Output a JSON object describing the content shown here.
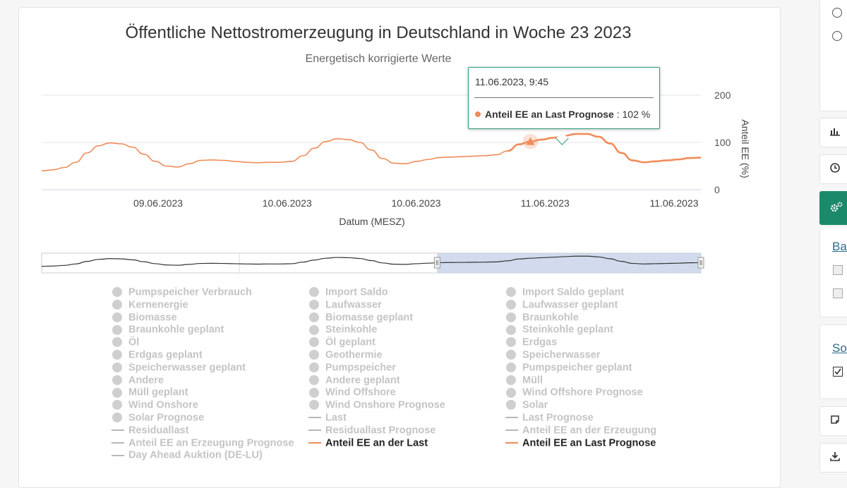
{
  "chart_data": {
    "type": "line",
    "title": "Öffentliche Nettostromerzeugung in Deutschland in Woche 23 2023",
    "subtitle": "Energetisch korrigierte Werte",
    "xlabel": "Datum (MESZ)",
    "ylabel": "Anteil EE (%)",
    "ylim": [
      0,
      200
    ],
    "yticks": [
      0,
      100,
      200
    ],
    "xticks": [
      "09.06.2023",
      "10.06.2023",
      "10.06.2023",
      "11.06.2023",
      "11.06.2023"
    ],
    "grid": true,
    "color": "#f08c5a",
    "series": [
      {
        "name": "Anteil EE an der Last",
        "points": [
          [
            0,
            40
          ],
          [
            0.5,
            42
          ],
          [
            1,
            47
          ],
          [
            1.5,
            58
          ],
          [
            2,
            78
          ],
          [
            2.5,
            93
          ],
          [
            3,
            99
          ],
          [
            3.5,
            97
          ],
          [
            4,
            90
          ],
          [
            4.5,
            75
          ],
          [
            5,
            60
          ],
          [
            5.5,
            50
          ],
          [
            6,
            48
          ],
          [
            6.5,
            55
          ],
          [
            7,
            62
          ],
          [
            7.5,
            63
          ],
          [
            8,
            62
          ],
          [
            8.5,
            60
          ],
          [
            9,
            58
          ],
          [
            9.5,
            57
          ],
          [
            10,
            58
          ],
          [
            10.5,
            58
          ],
          [
            11,
            60
          ],
          [
            11.5,
            72
          ],
          [
            12,
            88
          ],
          [
            12.5,
            102
          ],
          [
            13,
            108
          ],
          [
            13.5,
            106
          ],
          [
            14,
            100
          ],
          [
            14.5,
            84
          ],
          [
            15,
            66
          ],
          [
            15.5,
            56
          ],
          [
            16,
            55
          ],
          [
            16.5,
            60
          ],
          [
            17,
            64
          ],
          [
            17.5,
            68
          ],
          [
            18,
            69
          ],
          [
            18.5,
            70
          ],
          [
            19,
            71
          ],
          [
            19.5,
            72
          ],
          [
            20,
            74
          ],
          [
            20.5,
            82
          ]
        ]
      },
      {
        "name": "Anteil EE an Last Prognose",
        "points": [
          [
            20.5,
            82
          ],
          [
            21,
            96
          ],
          [
            21.5,
            102
          ],
          [
            22,
            106
          ],
          [
            22.5,
            110
          ],
          [
            23,
            114
          ],
          [
            23.5,
            118
          ],
          [
            24,
            118
          ],
          [
            24.5,
            112
          ],
          [
            25,
            98
          ],
          [
            25.5,
            78
          ],
          [
            26,
            62
          ],
          [
            26.5,
            58
          ],
          [
            27,
            60
          ],
          [
            27.5,
            62
          ],
          [
            28,
            64
          ],
          [
            28.5,
            67
          ],
          [
            29,
            68
          ]
        ]
      }
    ],
    "navigator": {
      "color": "#333333",
      "selection_color": "#c5d2e8",
      "selection": [
        0.6,
        1.0
      ]
    },
    "tooltip": {
      "time": "11.06.2023, 9:45",
      "series": "Anteil EE an Last Prognose",
      "value": "102 %"
    }
  },
  "legend": {
    "columns": [
      [
        {
          "label": "Pumpspeicher Verbrauch",
          "sym": "dot",
          "active": false
        },
        {
          "label": "Kernenergie",
          "sym": "dot",
          "active": false
        },
        {
          "label": "Biomasse",
          "sym": "dot",
          "active": false
        },
        {
          "label": "Braunkohle geplant",
          "sym": "dot",
          "active": false
        },
        {
          "label": "Öl",
          "sym": "dot",
          "active": false
        },
        {
          "label": "Erdgas geplant",
          "sym": "dot",
          "active": false
        },
        {
          "label": "Speicherwasser geplant",
          "sym": "dot",
          "active": false
        },
        {
          "label": "Andere",
          "sym": "dot",
          "active": false
        },
        {
          "label": "Müll geplant",
          "sym": "dot",
          "active": false
        },
        {
          "label": "Wind Onshore",
          "sym": "dot",
          "active": false
        },
        {
          "label": "Solar Prognose",
          "sym": "dot",
          "active": false
        },
        {
          "label": "Residuallast",
          "sym": "line",
          "active": false
        },
        {
          "label": "Anteil EE an Erzeugung Prognose",
          "sym": "line",
          "active": false
        },
        {
          "label": "Day Ahead Auktion (DE-LU)",
          "sym": "line",
          "active": false
        }
      ],
      [
        {
          "label": "Import Saldo",
          "sym": "dot",
          "active": false
        },
        {
          "label": "Laufwasser",
          "sym": "dot",
          "active": false
        },
        {
          "label": "Biomasse geplant",
          "sym": "dot",
          "active": false
        },
        {
          "label": "Steinkohle",
          "sym": "dot",
          "active": false
        },
        {
          "label": "Öl geplant",
          "sym": "dot",
          "active": false
        },
        {
          "label": "Geothermie",
          "sym": "dot",
          "active": false
        },
        {
          "label": "Pumpspeicher",
          "sym": "dot",
          "active": false
        },
        {
          "label": "Andere geplant",
          "sym": "dot",
          "active": false
        },
        {
          "label": "Wind Offshore",
          "sym": "dot",
          "active": false
        },
        {
          "label": "Wind Onshore Prognose",
          "sym": "dot",
          "active": false
        },
        {
          "label": "Last",
          "sym": "line",
          "active": false
        },
        {
          "label": "Residuallast Prognose",
          "sym": "line",
          "active": false
        },
        {
          "label": "Anteil EE an der Last",
          "sym": "line",
          "active": true
        }
      ],
      [
        {
          "label": "Import Saldo geplant",
          "sym": "dot",
          "active": false
        },
        {
          "label": "Laufwasser geplant",
          "sym": "dot",
          "active": false
        },
        {
          "label": "Braunkohle",
          "sym": "dot",
          "active": false
        },
        {
          "label": "Steinkohle geplant",
          "sym": "dot",
          "active": false
        },
        {
          "label": "Erdgas",
          "sym": "dot",
          "active": false
        },
        {
          "label": "Speicherwasser",
          "sym": "dot",
          "active": false
        },
        {
          "label": "Pumpspeicher geplant",
          "sym": "dot",
          "active": false
        },
        {
          "label": "Müll",
          "sym": "dot",
          "active": false
        },
        {
          "label": "Wind Offshore Prognose",
          "sym": "dot",
          "active": false
        },
        {
          "label": "Solar",
          "sym": "dot",
          "active": false
        },
        {
          "label": "Last Prognose",
          "sym": "line",
          "active": false
        },
        {
          "label": "Anteil EE an der Erzeugung",
          "sym": "line",
          "active": false
        },
        {
          "label": "Anteil EE an Last Prognose",
          "sym": "line",
          "active": true
        }
      ]
    ]
  },
  "sidebar": {
    "link1": "Bal",
    "link2": "Sor",
    "icons": [
      "radio",
      "radio",
      "bar-chart-icon",
      "clock-icon",
      "settings-icon",
      "checkbox",
      "checkbox",
      "checkbox-checked",
      "note-icon",
      "download-icon"
    ]
  }
}
